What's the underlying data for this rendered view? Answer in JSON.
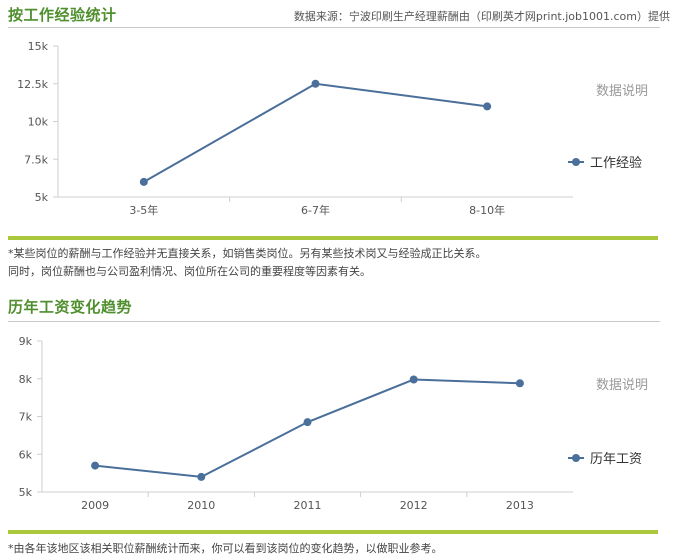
{
  "colors": {
    "line": "#4a6f9a",
    "accent_green": "#4f8f2e",
    "bar_green": "#a9c83c"
  },
  "header": {
    "title1": "按工作经验统计",
    "source": "数据来源：宁波印刷生产经理薪酬由（印刷英才网print.job1001.com）提供"
  },
  "section2": {
    "title": "历年工资变化趋势"
  },
  "notes": {
    "note1_line1": "*某些岗位的薪酬与工作经验并无直接关系，如销售类岗位。另有某些技术岗又与经验成正比关系。",
    "note1_line2": "同时，岗位薪酬也与公司盈利情况、岗位所在公司的重要程度等因素有关。",
    "note2": "*由各年该地区该相关职位薪酬统计而来，你可以看到该岗位的变化趋势，以做职业参考。"
  },
  "chart_data": [
    {
      "type": "line",
      "categories": [
        "3-5年",
        "6-7年",
        "8-10年"
      ],
      "series": [
        {
          "name": "工作经验",
          "values": [
            6000,
            12500,
            11000
          ]
        }
      ],
      "yticks": [
        "5k",
        "7.5k",
        "10k",
        "12.5k",
        "15k"
      ],
      "ylim": [
        5000,
        15000
      ],
      "annotation": "数据说明",
      "legend_position": "right",
      "grid": false
    },
    {
      "type": "line",
      "categories": [
        "2009",
        "2010",
        "2011",
        "2012",
        "2013"
      ],
      "series": [
        {
          "name": "历年工资",
          "values": [
            5700,
            5400,
            6850,
            7980,
            7880
          ]
        }
      ],
      "yticks": [
        "5k",
        "6k",
        "7k",
        "8k",
        "9k"
      ],
      "ylim": [
        5000,
        9000
      ],
      "annotation": "数据说明",
      "legend_position": "right",
      "grid": false
    }
  ]
}
